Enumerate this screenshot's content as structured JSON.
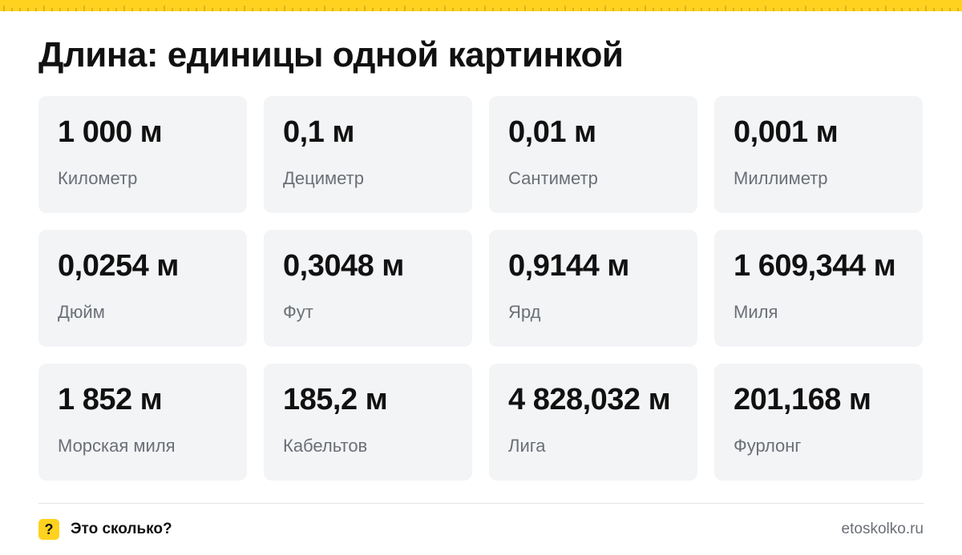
{
  "header": {
    "title": "Длина: единицы одной картинкой"
  },
  "cards": [
    {
      "value": "1 000 м",
      "name": "Километр"
    },
    {
      "value": "0,1 м",
      "name": "Дециметр"
    },
    {
      "value": "0,01 м",
      "name": "Сантиметр"
    },
    {
      "value": "0,001 м",
      "name": "Миллиметр"
    },
    {
      "value": "0,0254 м",
      "name": "Дюйм"
    },
    {
      "value": "0,3048 м",
      "name": "Фут"
    },
    {
      "value": "0,9144 м",
      "name": "Ярд"
    },
    {
      "value": "1 609,344 м",
      "name": "Миля"
    },
    {
      "value": "1 852 м",
      "name": "Морская миля"
    },
    {
      "value": "185,2 м",
      "name": "Кабельтов"
    },
    {
      "value": "4 828,032 м",
      "name": "Лига"
    },
    {
      "value": "201,168 м",
      "name": "Фурлонг"
    }
  ],
  "footer": {
    "icon": "?",
    "brand": "Это сколько?",
    "site": "etoskolko.ru"
  }
}
